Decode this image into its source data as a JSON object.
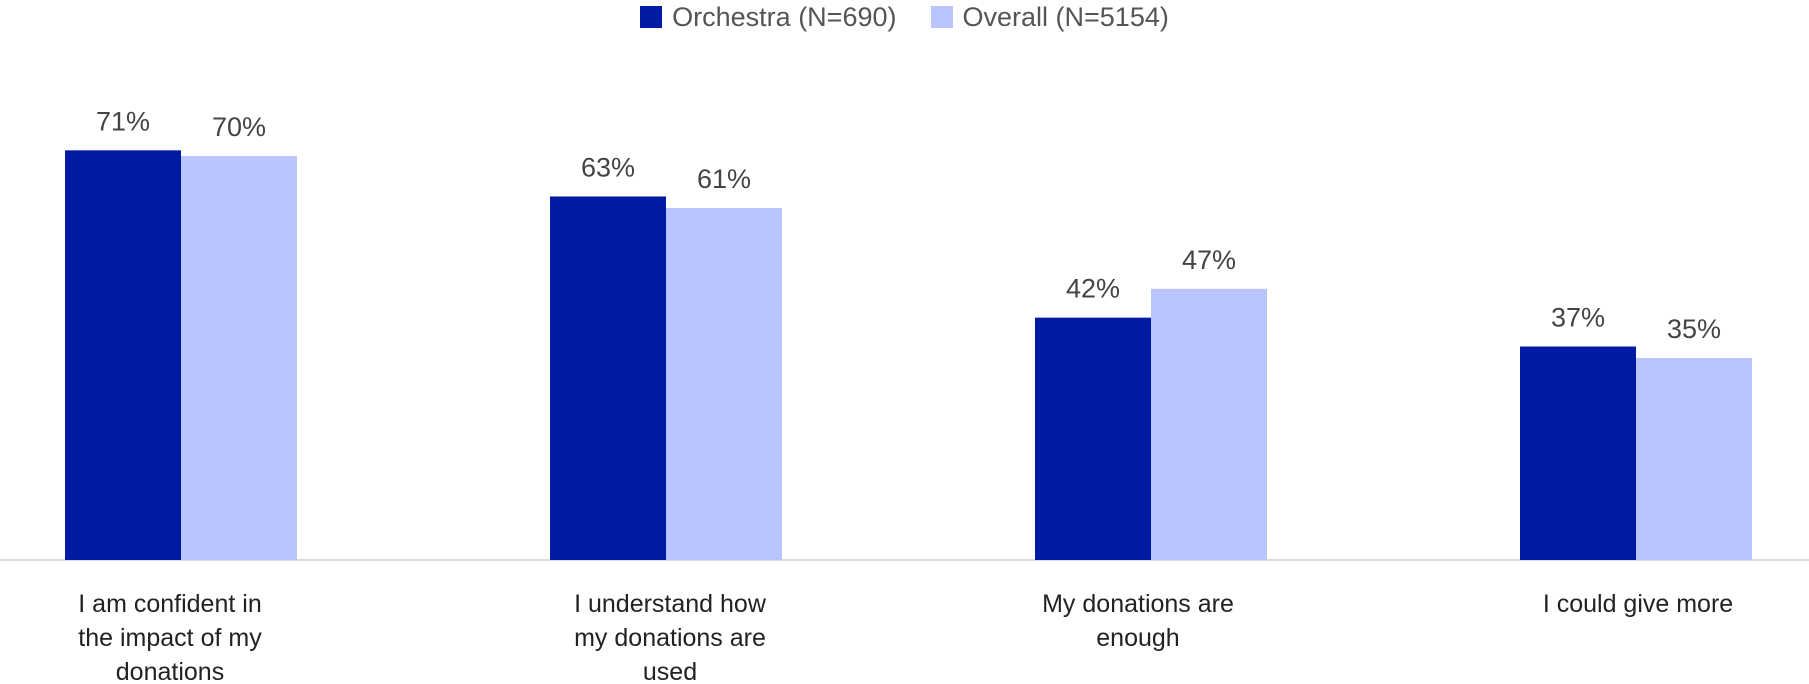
{
  "chart_data": {
    "type": "bar",
    "categories": [
      [
        "I am confident in",
        "the impact of my",
        "donations"
      ],
      [
        "I understand how",
        "my donations are",
        "used"
      ],
      [
        "My donations are",
        "enough"
      ],
      [
        "I could give more"
      ]
    ],
    "series": [
      {
        "name": "Orchestra (N=690)",
        "color": "#001ba3",
        "values": [
          71,
          63,
          42,
          37
        ],
        "labels": [
          "71%",
          "63%",
          "42%",
          "37%"
        ]
      },
      {
        "name": "Overall (N=5154)",
        "color": "#bac4ff",
        "values": [
          70,
          61,
          47,
          35
        ],
        "labels": [
          "70%",
          "61%",
          "47%",
          "35%"
        ]
      }
    ],
    "ylim": [
      0,
      80
    ],
    "grid": false,
    "legend_position": "top-center",
    "axis_color": "#d0d0d0"
  }
}
